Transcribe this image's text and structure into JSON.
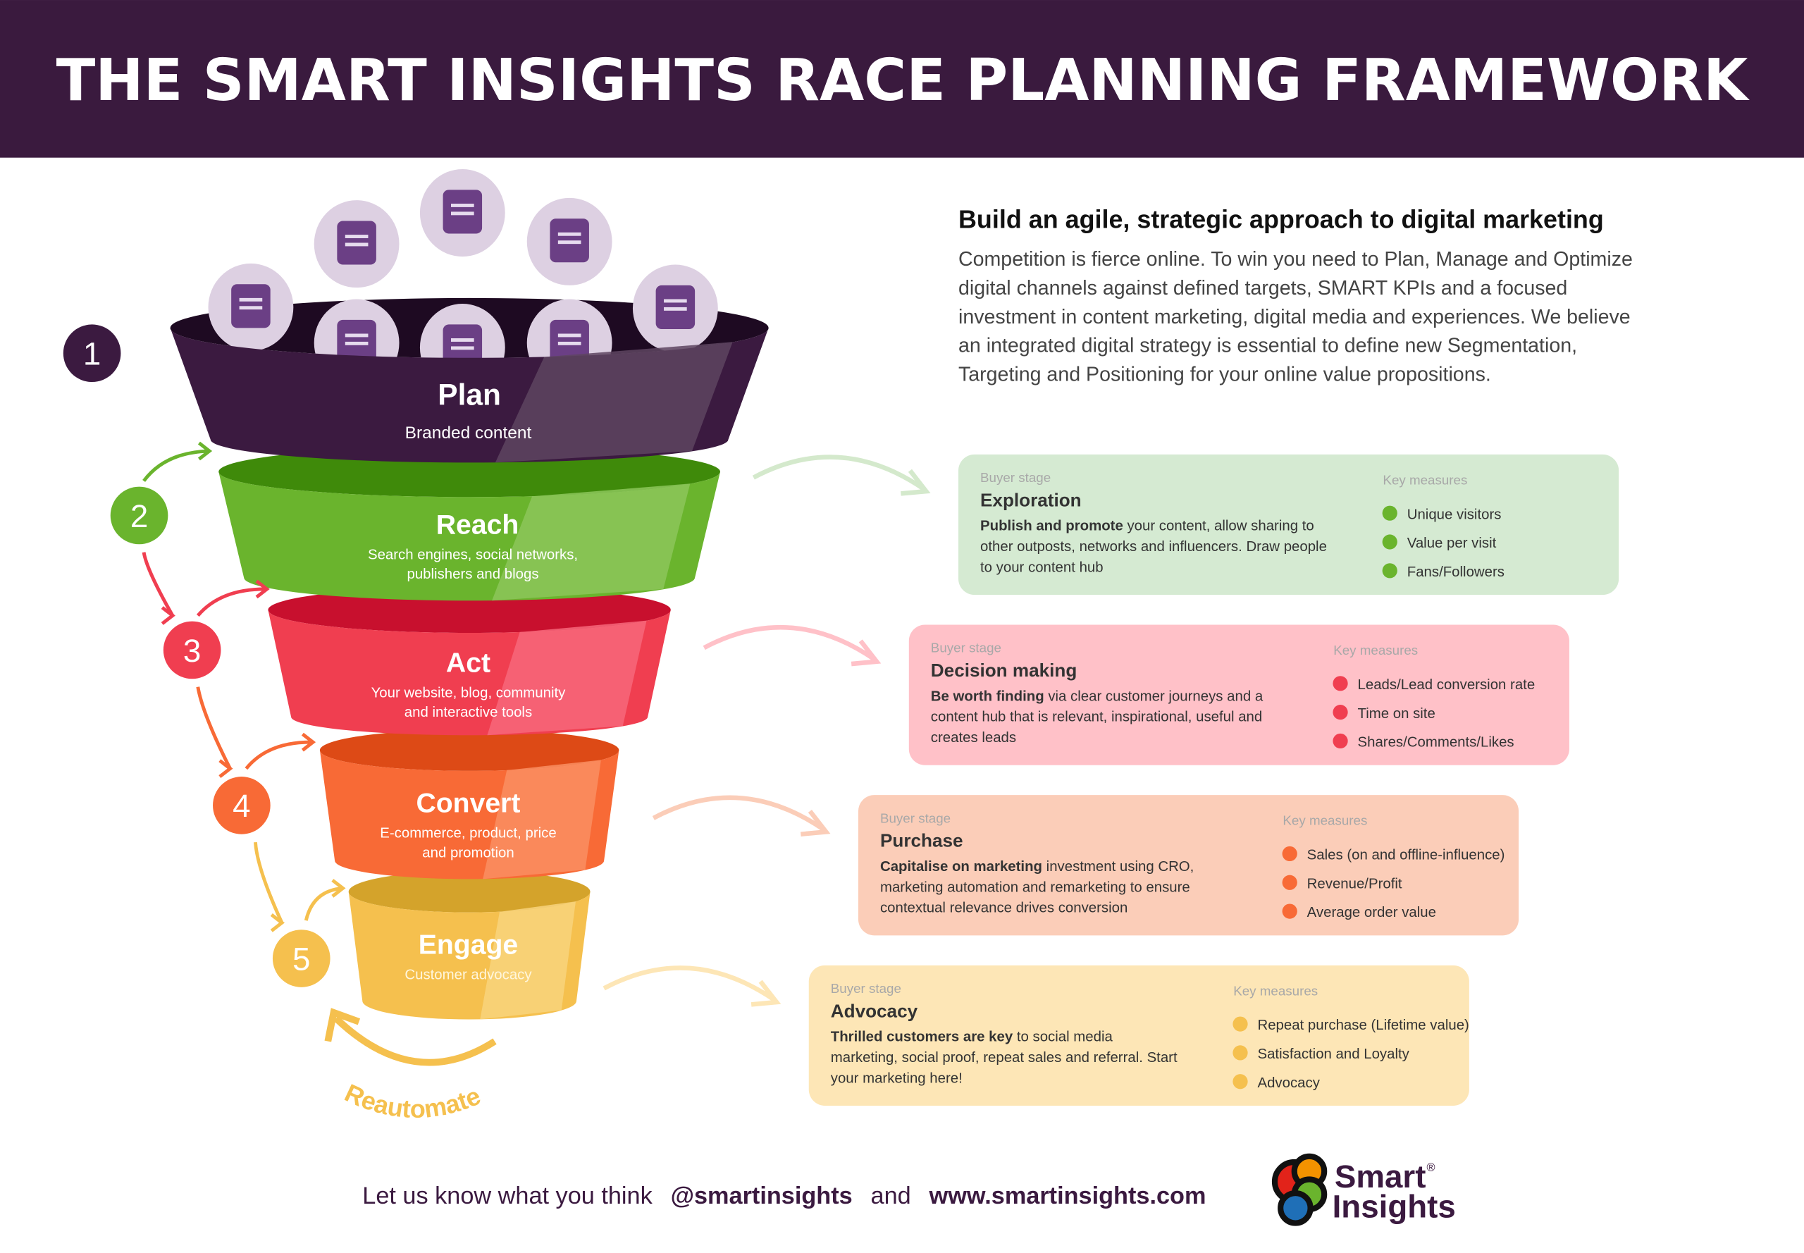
{
  "header": {
    "title": "THE SMART INSIGHTS RACE PLANNING FRAMEWORK",
    "bg": "#3a1a3e"
  },
  "intro": {
    "heading": "Build an agile, strategic approach to digital marketing",
    "lines": [
      "Competition is fierce online. To win you need to Plan, Manage and Optimize",
      "digital channels against defined targets, SMART KPIs and a focused",
      "investment in content marketing, digital media and experiences. We believe",
      "an integrated digital strategy is essential to define new Segmentation,",
      "Targeting and Positioning for your online value propositions."
    ]
  },
  "funnel": [
    {
      "number": "1",
      "title": "Plan",
      "sub": [
        "Branded content"
      ],
      "color": "#3b1a40"
    },
    {
      "number": "2",
      "title": "Reach",
      "sub": [
        "Search engines, social networks,",
        "publishers and blogs"
      ],
      "color": "#6ab42d"
    },
    {
      "number": "3",
      "title": "Act",
      "sub": [
        "Your website, blog, community",
        "and interactive tools"
      ],
      "color": "#f03e50"
    },
    {
      "number": "4",
      "title": "Convert",
      "sub": [
        "E-commerce, product, price",
        "and promotion"
      ],
      "color": "#f86a36"
    },
    {
      "number": "5",
      "title": "Engage",
      "sub": [
        "Customer advocacy"
      ],
      "color": "#f5c04e"
    }
  ],
  "content_icons": [
    "document-icon",
    "video-play-icon",
    "chat-message-icon",
    "megaphone-icon",
    "email-icon",
    "calendar-icon",
    "star-badge-icon",
    "notebook-icon"
  ],
  "reautomate": "Reautomate",
  "cards": [
    {
      "label": "Buyer stage",
      "stage": "Exploration",
      "bold": "Publish and promote",
      "desc": [
        " your content, allow sharing to",
        "other outposts, networks and influencers. Draw people",
        "to your content hub"
      ],
      "measures_label": "Key measures",
      "measures": [
        "Unique visitors",
        "Value per visit",
        "Fans/Followers"
      ],
      "bg": "#d5ead2",
      "dot": "#6ab42d",
      "arrow": "#d4e9cc"
    },
    {
      "label": "Buyer stage",
      "stage": "Decision making",
      "bold": "Be worth finding",
      "desc": [
        " via clear customer journeys and a",
        "content hub that is relevant, inspirational, useful and",
        "creates leads"
      ],
      "measures_label": "Key measures",
      "measures": [
        "Leads/Lead conversion rate",
        "Time on site",
        "Shares/Comments/Likes"
      ],
      "bg": "#ffc1c8",
      "dot": "#f03e50",
      "arrow": "#ffc1c8"
    },
    {
      "label": "Buyer stage",
      "stage": "Purchase",
      "bold": "Capitalise on marketing",
      "desc": [
        " investment using CRO,",
        "marketing automation and remarketing to ensure",
        "contextual relevance drives conversion"
      ],
      "measures_label": "Key measures",
      "measures": [
        "Sales (on and offline-influence)",
        "Revenue/Profit",
        "Average order value"
      ],
      "bg": "#fbcdb8",
      "dot": "#f86a36",
      "arrow": "#fbcdb8"
    },
    {
      "label": "Buyer stage",
      "stage": "Advocacy",
      "bold": "Thrilled customers are key",
      "desc": [
        " to social media",
        "marketing, social proof, repeat sales and referral. Start",
        "your marketing here!"
      ],
      "measures_label": "Key measures",
      "measures": [
        "Repeat purchase (Lifetime value)",
        "Satisfaction and Loyalty",
        "Advocacy"
      ],
      "bg": "#fde6b6",
      "dot": "#f5c04e",
      "arrow": "#fde6b6"
    }
  ],
  "footer": {
    "prompt": "Let us know what you think",
    "handle": "@smartinsights",
    "and": "and",
    "url": "www.smartinsights.com",
    "logo_top": "Smart",
    "logo_bottom": "Insights",
    "logo_reg": "®"
  }
}
